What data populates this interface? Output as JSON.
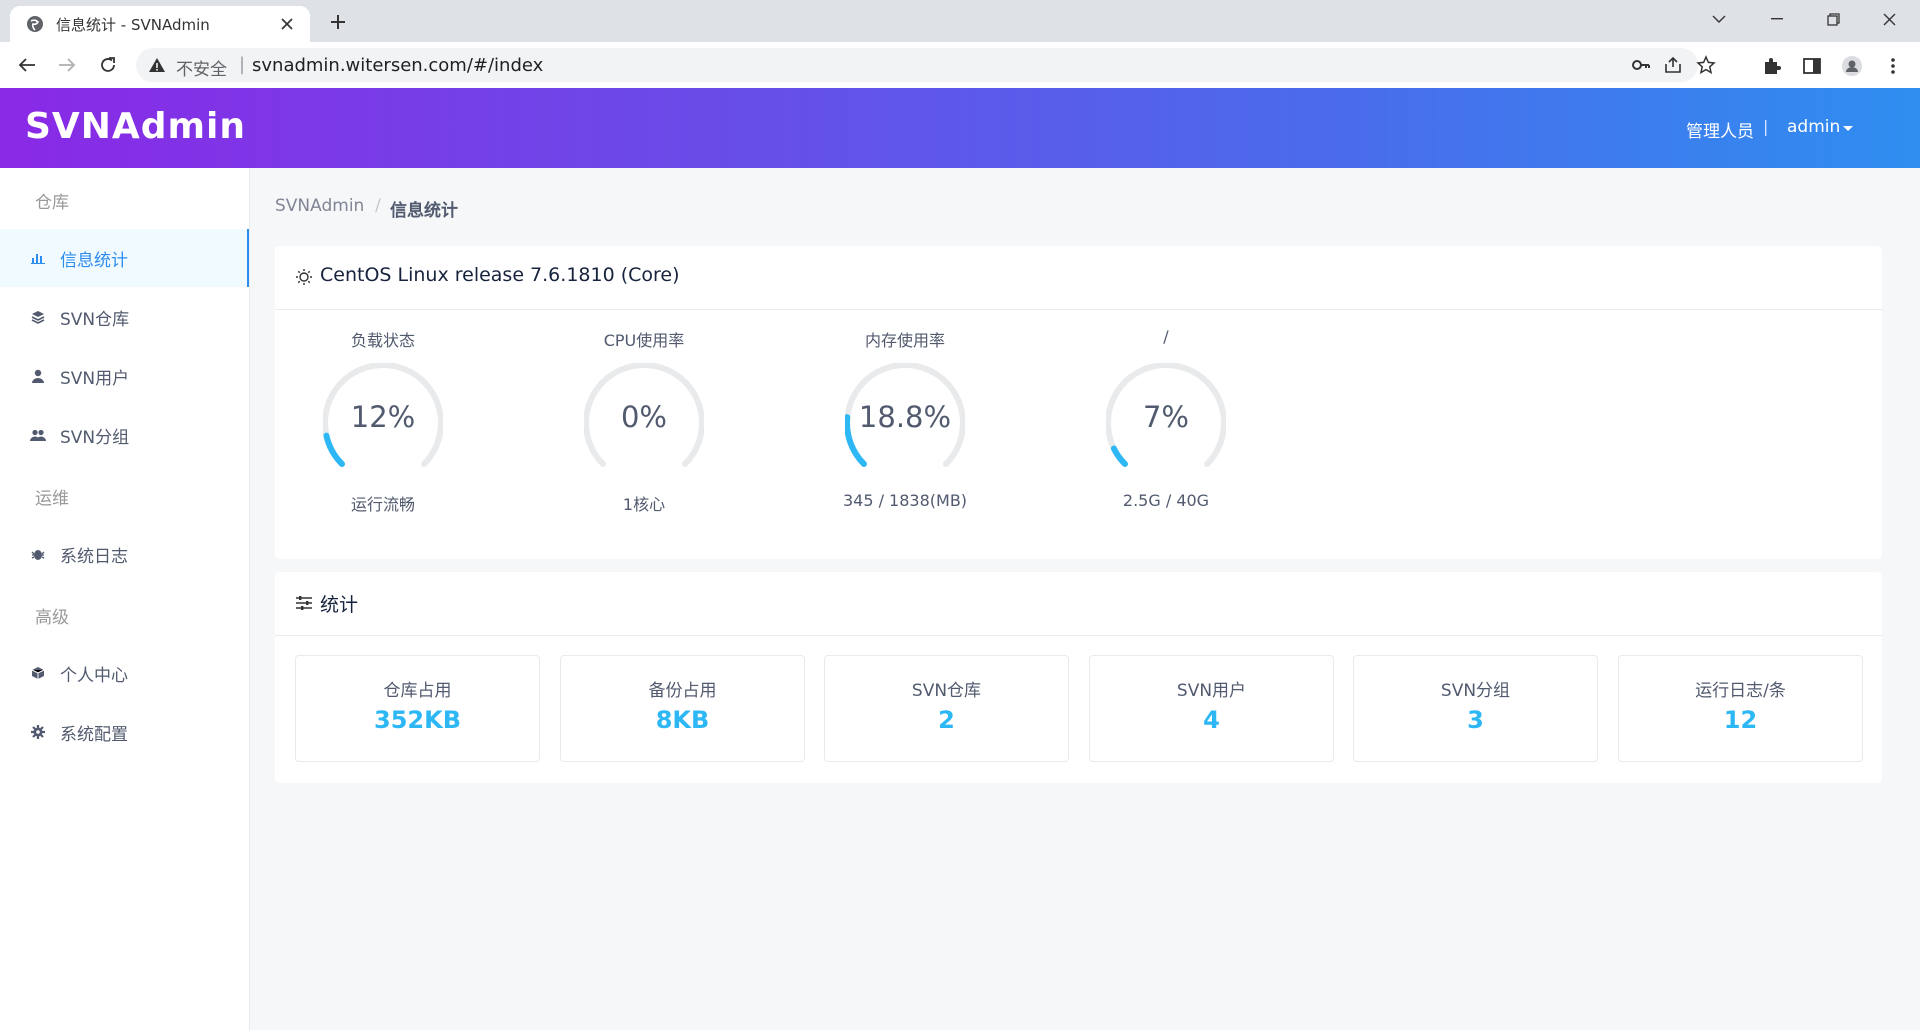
{
  "browser": {
    "tab_title": "信息统计 - SVNAdmin",
    "insecure_label": "不安全",
    "separator": "|",
    "url": "svnadmin.witersen.com/#/index"
  },
  "header": {
    "logo": "SVNAdmin",
    "role": "管理人员",
    "role_sep": "|",
    "user": "admin"
  },
  "sidebar": {
    "groups": [
      "仓库",
      "运维",
      "高级"
    ],
    "items": [
      {
        "label": "信息统计",
        "icon": "bar-chart-icon",
        "active": true
      },
      {
        "label": "SVN仓库",
        "icon": "layers-icon",
        "active": false
      },
      {
        "label": "SVN用户",
        "icon": "person-icon",
        "active": false
      },
      {
        "label": "SVN分组",
        "icon": "people-icon",
        "active": false
      },
      {
        "label": "系统日志",
        "icon": "bug-icon",
        "active": false
      },
      {
        "label": "个人中心",
        "icon": "cube-icon",
        "active": false
      },
      {
        "label": "系统配置",
        "icon": "gear-icon",
        "active": false
      }
    ]
  },
  "breadcrumb": {
    "root": "SVNAdmin",
    "sep": "/",
    "current": "信息统计"
  },
  "system_card": {
    "title": "CentOS Linux release 7.6.1810 (Core)",
    "gauges": [
      {
        "title": "负载状态",
        "value": "12%",
        "percent": 12,
        "sub": "运行流畅"
      },
      {
        "title": "CPU使用率",
        "value": "0%",
        "percent": 0,
        "sub": "1核心"
      },
      {
        "title": "内存使用率",
        "value": "18.8%",
        "percent": 18.8,
        "sub": "345 / 1838(MB)"
      },
      {
        "title": "/",
        "value": "7%",
        "percent": 7,
        "sub": "2.5G / 40G"
      }
    ]
  },
  "stats_card": {
    "title": "统计",
    "items": [
      {
        "label": "仓库占用",
        "value": "352KB"
      },
      {
        "label": "备份占用",
        "value": "8KB"
      },
      {
        "label": "SVN仓库",
        "value": "2"
      },
      {
        "label": "SVN用户",
        "value": "4"
      },
      {
        "label": "SVN分组",
        "value": "3"
      },
      {
        "label": "运行日志/条",
        "value": "12"
      }
    ]
  },
  "colors": {
    "accent": "#2d8cf0",
    "gauge_fill": "#2db7f5",
    "gauge_track": "#e8eaec",
    "stat_value": "#2db7f5"
  }
}
